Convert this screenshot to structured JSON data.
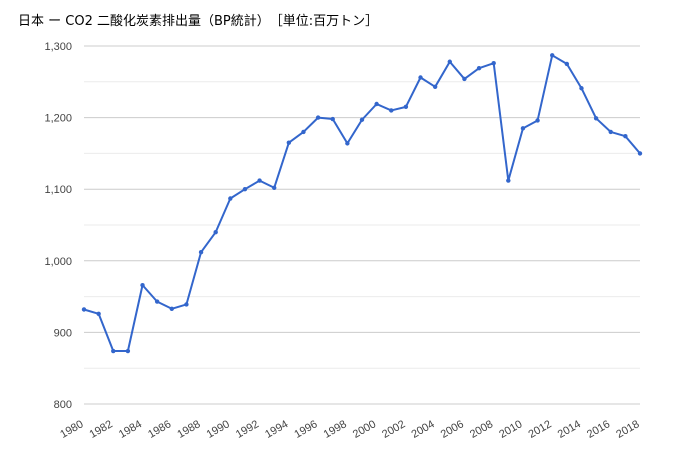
{
  "colors": {
    "line": "#3366cc",
    "grid_major": "#cccccc",
    "grid_minor": "#ebebeb",
    "text": "#444444",
    "title": "#000000"
  },
  "chart_data": {
    "type": "line",
    "title": "日本 ー CO2 二酸化炭素排出量（BP統計）　［単位:百万トン］",
    "xlabel": "",
    "ylabel": "",
    "ylim": [
      800,
      1300
    ],
    "yticks": [
      800,
      900,
      1000,
      1100,
      1200,
      1300
    ],
    "ytick_labels": [
      "800",
      "900",
      "1,000",
      "1,100",
      "1,200",
      "1,300"
    ],
    "xticks": [
      1980,
      1982,
      1984,
      1986,
      1988,
      1990,
      1992,
      1994,
      1996,
      1998,
      2000,
      2002,
      2004,
      2006,
      2008,
      2010,
      2012,
      2014,
      2016,
      2018
    ],
    "xtick_labels": [
      "1980",
      "1982",
      "1984",
      "1986",
      "1988",
      "1990",
      "1992",
      "1994",
      "1996",
      "1998",
      "2000",
      "2002",
      "2004",
      "2006",
      "2008",
      "2010",
      "2012",
      "2014",
      "2016",
      "2018"
    ],
    "grid": true,
    "legend": "none",
    "x": [
      1980,
      1981,
      1982,
      1983,
      1984,
      1985,
      1986,
      1987,
      1988,
      1989,
      1990,
      1991,
      1992,
      1993,
      1994,
      1995,
      1996,
      1997,
      1998,
      1999,
      2000,
      2001,
      2002,
      2003,
      2004,
      2005,
      2006,
      2007,
      2008,
      2009,
      2010,
      2011,
      2012,
      2013,
      2014,
      2015,
      2016,
      2017,
      2018
    ],
    "series": [
      {
        "values": [
          932,
          926,
          874,
          874,
          966,
          943,
          933,
          939,
          1012,
          1040,
          1087,
          1100,
          1112,
          1102,
          1165,
          1180,
          1200,
          1198,
          1164,
          1197,
          1219,
          1210,
          1215,
          1256,
          1243,
          1278,
          1254,
          1269,
          1276,
          1112,
          1185,
          1196,
          1287,
          1275,
          1241,
          1199,
          1180,
          1174,
          1150
        ]
      }
    ]
  }
}
